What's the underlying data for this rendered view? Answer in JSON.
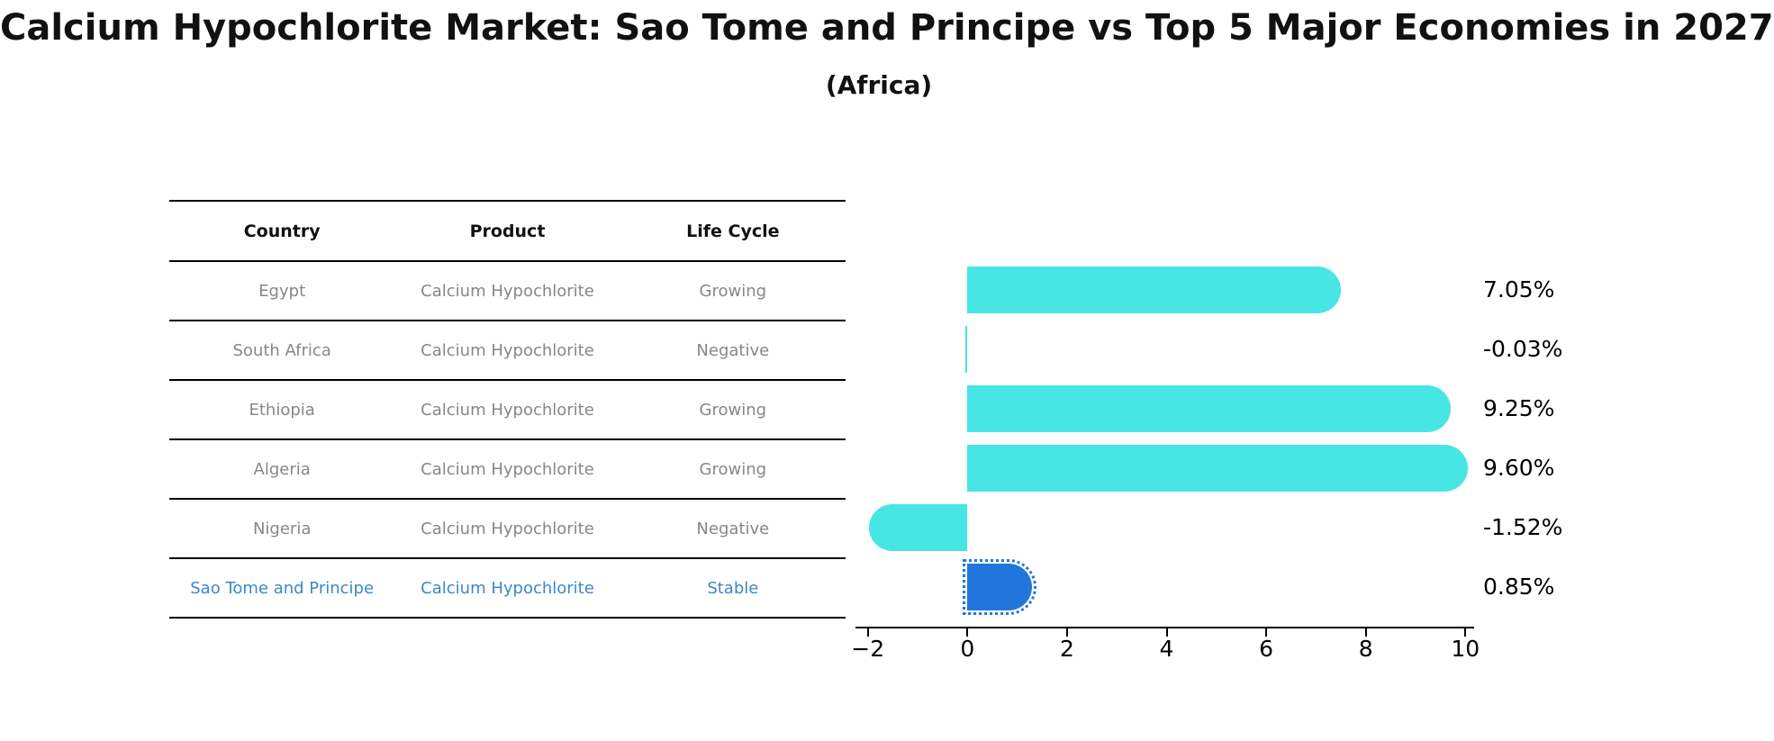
{
  "title": "Calcium Hypochlorite Market: Sao Tome and Principe vs Top 5 Major Economies in 2027",
  "subtitle": "(Africa)",
  "table": {
    "headers": [
      "Country",
      "Product",
      "Life Cycle"
    ],
    "rows": [
      {
        "country": "Egypt",
        "product": "Calcium Hypochlorite",
        "life_cycle": "Growing",
        "highlight": false
      },
      {
        "country": "South Africa",
        "product": "Calcium Hypochlorite",
        "life_cycle": "Negative",
        "highlight": false
      },
      {
        "country": "Ethiopia",
        "product": "Calcium Hypochlorite",
        "life_cycle": "Growing",
        "highlight": false
      },
      {
        "country": "Algeria",
        "product": "Calcium Hypochlorite",
        "life_cycle": "Growing",
        "highlight": false
      },
      {
        "country": "Nigeria",
        "product": "Calcium Hypochlorite",
        "life_cycle": "Negative",
        "highlight": false
      },
      {
        "country": "Sao Tome and Principe",
        "product": "Calcium Hypochlorite",
        "life_cycle": "Stable",
        "highlight": true
      }
    ]
  },
  "chart_data": {
    "type": "bar",
    "orientation": "horizontal",
    "categories": [
      "Egypt",
      "South Africa",
      "Ethiopia",
      "Algeria",
      "Nigeria",
      "Sao Tome and Principe"
    ],
    "values": [
      7.05,
      -0.03,
      9.25,
      9.6,
      -1.52,
      0.85
    ],
    "value_labels": [
      "7.05%",
      "-0.03%",
      "9.25%",
      "9.60%",
      "-1.52%",
      "0.85%"
    ],
    "highlight_index": 5,
    "xtick_values": [
      -2,
      0,
      2,
      4,
      6,
      8,
      10
    ],
    "xtick_labels": [
      "−2",
      "0",
      "2",
      "4",
      "6",
      "8",
      "10"
    ],
    "xlim": [
      -2.25,
      10.15
    ],
    "grid": false,
    "legend": null,
    "title": "Calcium Hypochlorite Market: Sao Tome and Principe vs Top 5 Major Economies in 2027 (Africa)",
    "xlabel": "",
    "ylabel": ""
  },
  "colors": {
    "bar": "#48E5E5",
    "highlight_bar": "#2176DB",
    "highlight_text": "#3E87C8",
    "body_text": "#878787",
    "header_text": "#111111",
    "axis": "#000000"
  }
}
